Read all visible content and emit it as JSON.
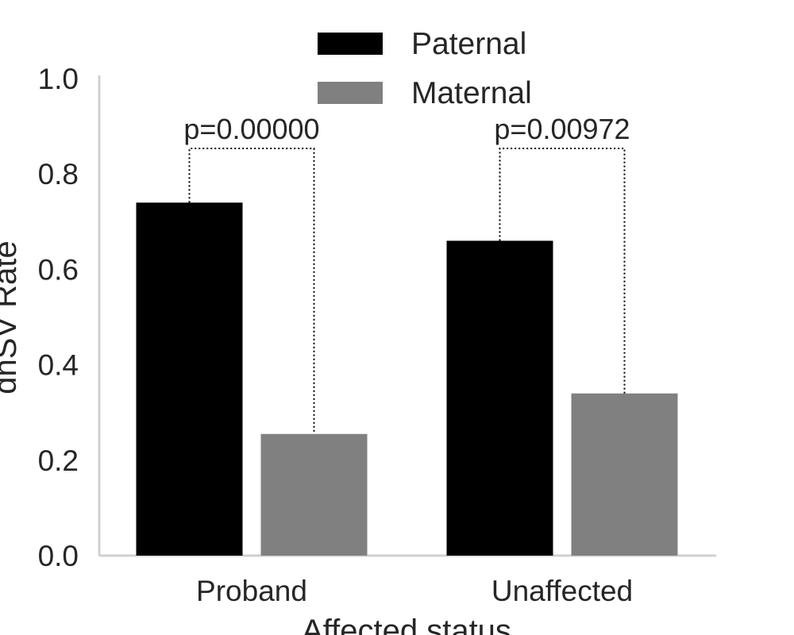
{
  "chart_data": {
    "type": "bar",
    "title": "",
    "xlabel": "Affected status",
    "ylabel": "dnSV Rate",
    "categories": [
      "Proband",
      "Unaffected"
    ],
    "series": [
      {
        "name": "Paternal",
        "values": [
          0.74,
          0.66
        ],
        "color": "#000000"
      },
      {
        "name": "Maternal",
        "values": [
          0.255,
          0.34
        ],
        "color": "#808080"
      }
    ],
    "ylim": [
      0,
      1.0
    ],
    "yticks": [
      "0.0",
      "0.2",
      "0.4",
      "0.6",
      "0.8",
      "1.0"
    ],
    "grid": false,
    "legend_position": "top-center",
    "annotations": [
      {
        "category": "Proband",
        "text": "p=0.00000"
      },
      {
        "category": "Unaffected",
        "text": "p=0.00972"
      }
    ]
  }
}
